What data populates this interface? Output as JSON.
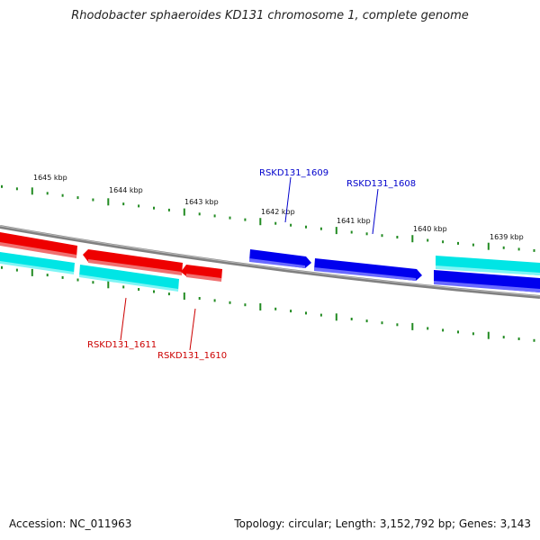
{
  "title": "Rhodobacter sphaeroides KD131 chromosome 1, complete genome",
  "footer": {
    "accession": "Accession: NC_011963",
    "summary": "Topology: circular; Length: 3,152,792 bp; Genes: 3,143"
  },
  "colors": {
    "backbone": "#808080",
    "forward_cds": "#0000ee",
    "reverse_cds": "#ee0000",
    "rna_cyan": "#00eeee",
    "ticks": "#228b22",
    "label_blue": "#0000cc",
    "label_red": "#cc0000"
  },
  "scale": {
    "ticks_kbp": [
      "1645 kbp",
      "1644 kbp",
      "1643 kbp",
      "1642 kbp",
      "1641 kbp",
      "1640 kbp",
      "1639 kbp"
    ]
  },
  "genes": [
    {
      "id": "RSKD131_1611",
      "strand": "reverse",
      "color": "red"
    },
    {
      "id": "RSKD131_1610",
      "strand": "reverse",
      "color": "red"
    },
    {
      "id": "RSKD131_1609",
      "strand": "forward",
      "color": "blue"
    },
    {
      "id": "RSKD131_1608",
      "strand": "forward",
      "color": "blue"
    }
  ]
}
